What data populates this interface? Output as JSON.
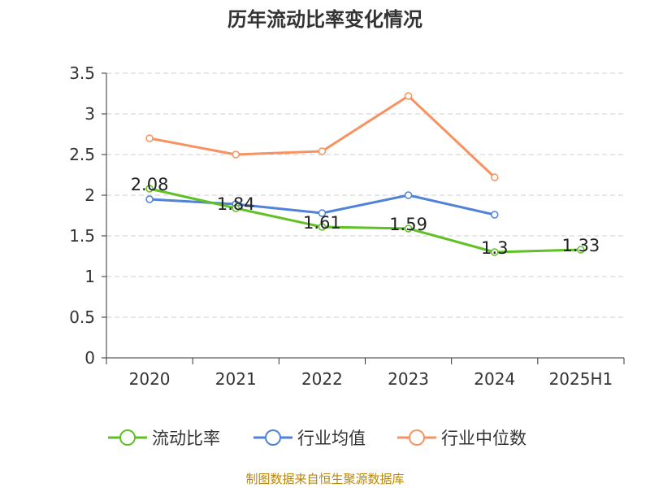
{
  "chart_data": {
    "type": "line",
    "title": "历年流动比率变化情况",
    "categories": [
      "2020",
      "2021",
      "2022",
      "2023",
      "2024",
      "2025H1"
    ],
    "ylim": [
      0,
      3.5
    ],
    "yticks": [
      "0",
      "0.5",
      "1",
      "1.5",
      "2",
      "2.5",
      "3",
      "3.5"
    ],
    "grid": true,
    "legend_position": "bottom",
    "series": [
      {
        "name": "流动比率",
        "color": "#5fc124",
        "values": [
          2.08,
          1.84,
          1.61,
          1.59,
          1.3,
          1.33
        ],
        "labels": [
          "2.08",
          "1.84",
          "1.61",
          "1.59",
          "1.3",
          "1.33"
        ]
      },
      {
        "name": "行业均值",
        "color": "#4f82d8",
        "values": [
          1.95,
          1.89,
          1.78,
          2.0,
          1.76,
          null
        ]
      },
      {
        "name": "行业中位数",
        "color": "#f79361",
        "values": [
          2.7,
          2.5,
          2.54,
          3.22,
          2.22,
          null
        ]
      }
    ]
  },
  "source_text": "制图数据来自恒生聚源数据库"
}
